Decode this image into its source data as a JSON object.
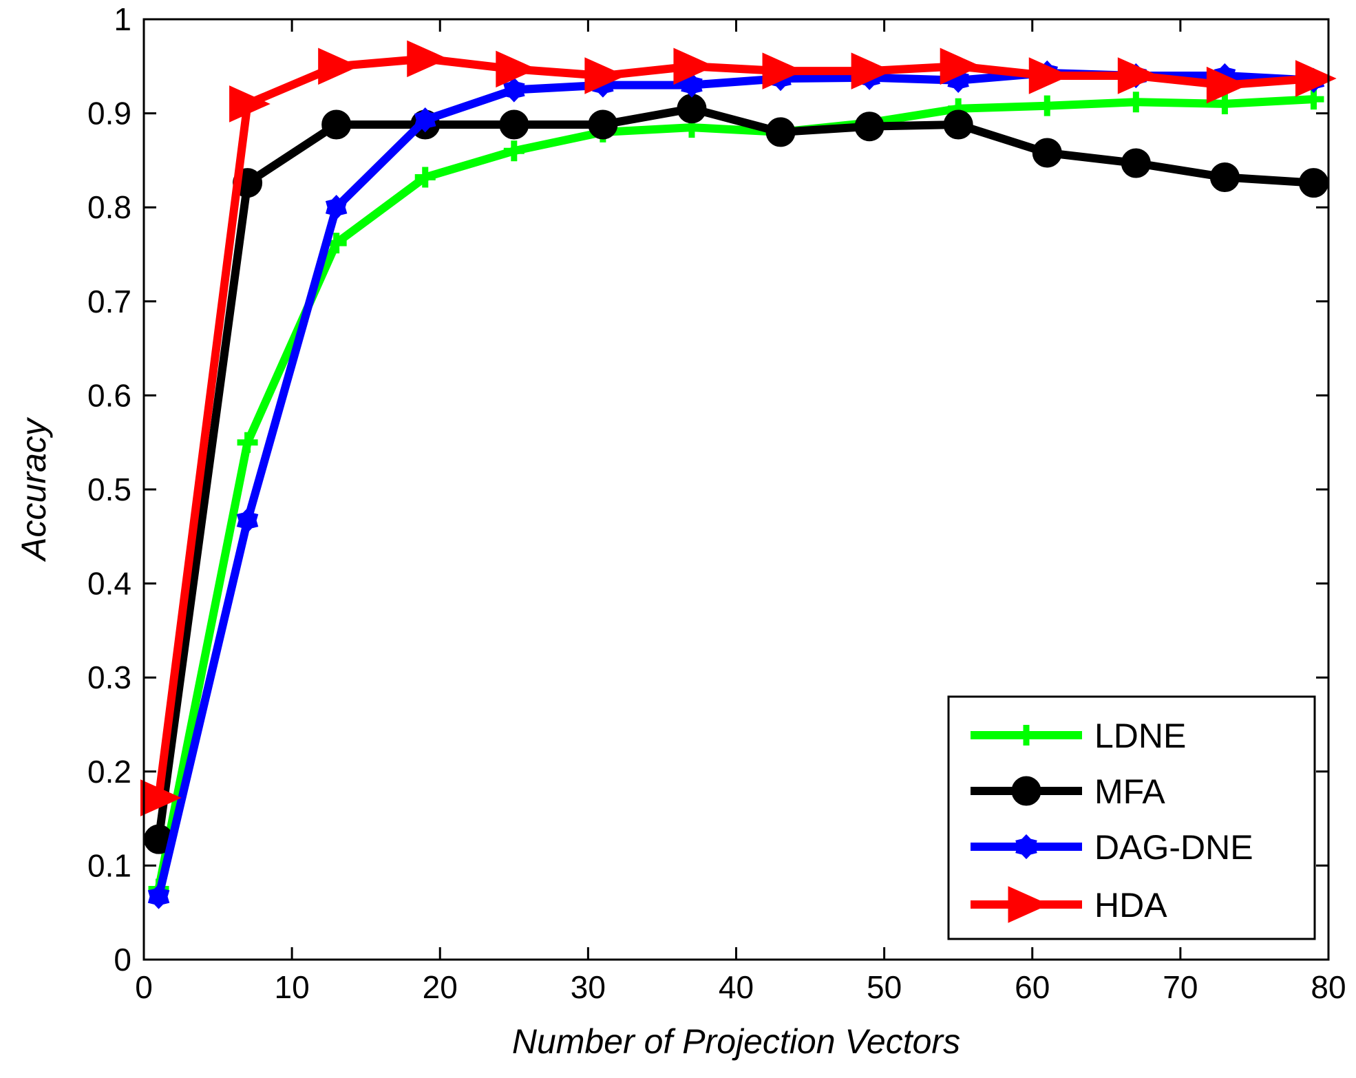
{
  "chart_data": {
    "type": "line",
    "title": "",
    "xlabel": "Number of Projection Vectors",
    "ylabel": "Accuracy",
    "xlim": [
      0,
      80
    ],
    "ylim": [
      0,
      1
    ],
    "xticks": [
      0,
      10,
      20,
      30,
      40,
      50,
      60,
      70,
      80
    ],
    "yticks": [
      0,
      0.1,
      0.2,
      0.3,
      0.4,
      0.5,
      0.6,
      0.7,
      0.8,
      0.9,
      1
    ],
    "xtick_labels": [
      "0",
      "10",
      "20",
      "30",
      "40",
      "50",
      "60",
      "70",
      "80"
    ],
    "ytick_labels": [
      "0",
      "0.1",
      "0.2",
      "0.3",
      "0.4",
      "0.5",
      "0.6",
      "0.7",
      "0.8",
      "0.9",
      "1"
    ],
    "legend_position": "bottom-right",
    "x": [
      1,
      7,
      13,
      19,
      25,
      31,
      37,
      43,
      49,
      55,
      61,
      67,
      73,
      79
    ],
    "series": [
      {
        "name": "LDNE",
        "color": "#00ff00",
        "marker": "plus",
        "values": [
          0.075,
          0.55,
          0.762,
          0.832,
          0.86,
          0.88,
          0.885,
          0.88,
          0.89,
          0.905,
          0.908,
          0.912,
          0.91,
          0.915
        ]
      },
      {
        "name": "MFA",
        "color": "#000000",
        "marker": "circle",
        "values": [
          0.128,
          0.826,
          0.888,
          0.888,
          0.888,
          0.888,
          0.905,
          0.88,
          0.886,
          0.888,
          0.858,
          0.847,
          0.832,
          0.826
        ]
      },
      {
        "name": "DAG-DNE",
        "color": "#0000ff",
        "marker": "hexagram",
        "values": [
          0.067,
          0.467,
          0.8,
          0.893,
          0.925,
          0.93,
          0.93,
          0.937,
          0.938,
          0.935,
          0.943,
          0.94,
          0.94,
          0.935
        ]
      },
      {
        "name": "HDA",
        "color": "#ff0000",
        "marker": "triangle-right",
        "values": [
          0.172,
          0.91,
          0.95,
          0.958,
          0.947,
          0.94,
          0.95,
          0.945,
          0.945,
          0.95,
          0.94,
          0.94,
          0.93,
          0.937
        ]
      }
    ]
  }
}
